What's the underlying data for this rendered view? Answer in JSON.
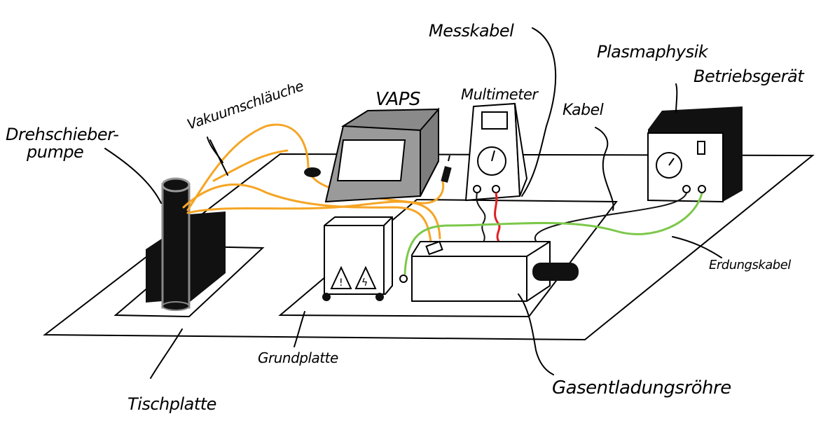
{
  "labels": {
    "drehschieber_line1": "Drehschieber-",
    "drehschieber_line2": "pumpe",
    "vakuumschlaeuche": "Vakuumschläuche",
    "vaps": "VAPS",
    "multimeter": "Multimeter",
    "messkabel": "Messkabel",
    "plasmaphysik_line1": "Plasmaphysik",
    "plasmaphysik_line2": "Betriebsgerät",
    "kabel": "Kabel",
    "erdungskabel": "Erdungskabel",
    "grundplatte": "Grundplatte",
    "tischplatte": "Tischplatte",
    "gasentladungsroehre": "Gasentladungsröhre"
  },
  "colors": {
    "vacuum_hose": "#f5a524",
    "ground_cable": "#7cc84a",
    "red_cable": "#e02020",
    "vaps_fill": "#9a9a9a",
    "pump_fill": "#111111"
  }
}
